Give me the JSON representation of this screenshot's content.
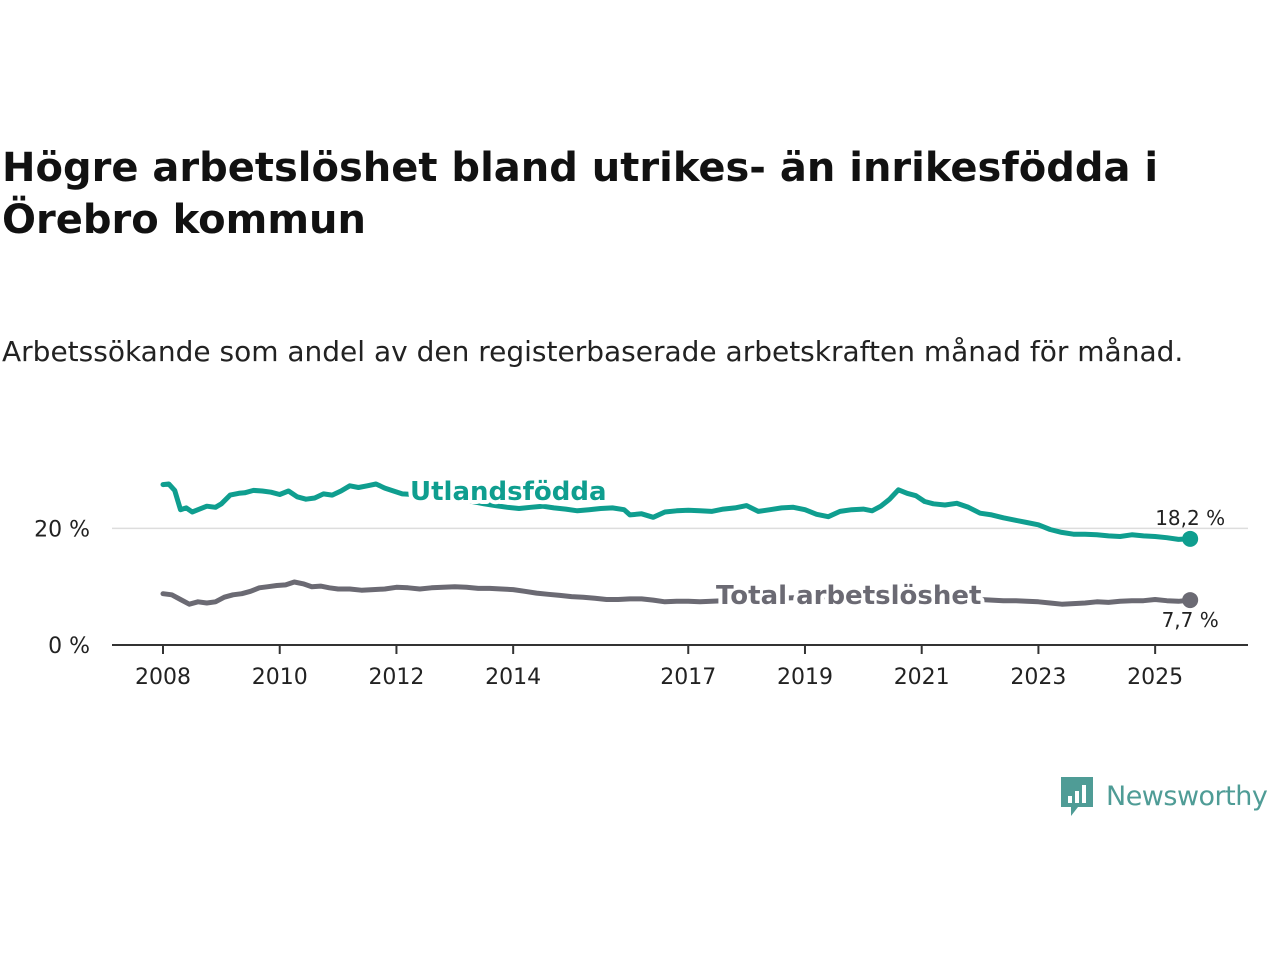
{
  "title": "Högre arbetslöshet bland utrikes- än inrikesfödda i Örebro kommun",
  "subtitle": "Arbetssökande som andel av den registerbaserade arbetskraften månad för månad.",
  "brand": {
    "name": "Newsworthy",
    "color": "#4f9c96"
  },
  "chart_data": {
    "type": "line",
    "title": "Högre arbetslöshet bland utrikes- än inrikesfödda i Örebro kommun",
    "xlabel": "",
    "ylabel": "",
    "xlim": [
      2008.0,
      2025.7
    ],
    "ylim": [
      0,
      30
    ],
    "grid": true,
    "x_ticks": [
      {
        "value": 2008,
        "label": "2008"
      },
      {
        "value": 2010,
        "label": "2010"
      },
      {
        "value": 2012,
        "label": "2012"
      },
      {
        "value": 2014,
        "label": "2014"
      },
      {
        "value": 2017,
        "label": "2017"
      },
      {
        "value": 2019,
        "label": "2019"
      },
      {
        "value": 2021,
        "label": "2021"
      },
      {
        "value": 2023,
        "label": "2023"
      },
      {
        "value": 2025,
        "label": "2025"
      }
    ],
    "y_ticks": [
      {
        "value": 0,
        "label": "0 %"
      },
      {
        "value": 20,
        "label": "20 %"
      }
    ],
    "series": [
      {
        "name": "Utlandsfödda",
        "color": "#0f9e8f",
        "end_label": "18,2 %",
        "x": [
          2008.0,
          2008.1,
          2008.2,
          2008.3,
          2008.4,
          2008.5,
          2008.6,
          2008.75,
          2008.9,
          2009.0,
          2009.15,
          2009.3,
          2009.4,
          2009.55,
          2009.7,
          2009.85,
          2010.0,
          2010.15,
          2010.3,
          2010.45,
          2010.6,
          2010.75,
          2010.9,
          2011.05,
          2011.2,
          2011.35,
          2011.5,
          2011.65,
          2011.8,
          2011.95,
          2012.1,
          2012.3,
          2012.5,
          2012.7,
          2012.9,
          2013.1,
          2013.3,
          2013.5,
          2013.7,
          2013.9,
          2014.1,
          2014.3,
          2014.5,
          2014.7,
          2014.9,
          2015.1,
          2015.3,
          2015.5,
          2015.7,
          2015.9,
          2016.0,
          2016.2,
          2016.4,
          2016.6,
          2016.8,
          2017.0,
          2017.2,
          2017.4,
          2017.6,
          2017.8,
          2018.0,
          2018.2,
          2018.4,
          2018.6,
          2018.8,
          2019.0,
          2019.2,
          2019.4,
          2019.6,
          2019.8,
          2020.0,
          2020.15,
          2020.3,
          2020.45,
          2020.6,
          2020.75,
          2020.9,
          2021.05,
          2021.2,
          2021.4,
          2021.6,
          2021.8,
          2022.0,
          2022.2,
          2022.4,
          2022.6,
          2022.8,
          2023.0,
          2023.2,
          2023.4,
          2023.6,
          2023.8,
          2024.0,
          2024.2,
          2024.4,
          2024.6,
          2024.8,
          2025.0,
          2025.2,
          2025.4,
          2025.6
        ],
        "values": [
          27.5,
          27.6,
          26.5,
          23.2,
          23.5,
          22.8,
          23.2,
          23.8,
          23.6,
          24.2,
          25.7,
          26.0,
          26.1,
          26.5,
          26.4,
          26.2,
          25.8,
          26.4,
          25.4,
          25.0,
          25.2,
          25.9,
          25.7,
          26.4,
          27.3,
          27.0,
          27.3,
          27.6,
          26.9,
          26.4,
          25.9,
          25.8,
          25.6,
          25.4,
          25.3,
          25.0,
          24.6,
          24.2,
          23.9,
          23.6,
          23.4,
          23.6,
          23.8,
          23.5,
          23.3,
          23.0,
          23.2,
          23.4,
          23.5,
          23.2,
          22.3,
          22.5,
          21.9,
          22.8,
          23.0,
          23.1,
          23.0,
          22.9,
          23.3,
          23.5,
          23.9,
          22.9,
          23.2,
          23.5,
          23.6,
          23.2,
          22.4,
          22.0,
          22.9,
          23.2,
          23.3,
          23.0,
          23.8,
          25.0,
          26.6,
          26.0,
          25.6,
          24.6,
          24.2,
          24.0,
          24.3,
          23.6,
          22.6,
          22.3,
          21.8,
          21.4,
          21.0,
          20.6,
          19.8,
          19.3,
          19.0,
          19.0,
          18.9,
          18.7,
          18.6,
          18.9,
          18.7,
          18.6,
          18.4,
          18.1,
          18.2
        ]
      },
      {
        "name": "Total arbetslöshet",
        "color": "#6b6a73",
        "end_label": "7,7 %",
        "x": [
          2008.0,
          2008.15,
          2008.3,
          2008.45,
          2008.6,
          2008.75,
          2008.9,
          2009.05,
          2009.2,
          2009.35,
          2009.5,
          2009.65,
          2009.8,
          2009.95,
          2010.1,
          2010.25,
          2010.4,
          2010.55,
          2010.7,
          2010.85,
          2011.0,
          2011.2,
          2011.4,
          2011.6,
          2011.8,
          2012.0,
          2012.2,
          2012.4,
          2012.6,
          2012.8,
          2013.0,
          2013.2,
          2013.4,
          2013.6,
          2013.8,
          2014.0,
          2014.2,
          2014.4,
          2014.6,
          2014.8,
          2015.0,
          2015.2,
          2015.4,
          2015.6,
          2015.8,
          2016.0,
          2016.2,
          2016.4,
          2016.6,
          2016.8,
          2017.0,
          2017.2,
          2017.4,
          2017.6,
          2017.8,
          2018.0,
          2018.2,
          2018.4,
          2018.6,
          2018.8,
          2019.0,
          2019.2,
          2019.4,
          2019.6,
          2019.8,
          2020.0,
          2020.2,
          2020.4,
          2020.6,
          2020.8,
          2021.0,
          2021.2,
          2021.4,
          2021.6,
          2021.8,
          2022.0,
          2022.2,
          2022.4,
          2022.6,
          2022.8,
          2023.0,
          2023.2,
          2023.4,
          2023.6,
          2023.8,
          2024.0,
          2024.2,
          2024.4,
          2024.6,
          2024.8,
          2025.0,
          2025.2,
          2025.4,
          2025.6
        ],
        "values": [
          8.8,
          8.6,
          7.8,
          7.0,
          7.4,
          7.2,
          7.4,
          8.2,
          8.6,
          8.8,
          9.2,
          9.8,
          10.0,
          10.2,
          10.3,
          10.8,
          10.5,
          10.0,
          10.1,
          9.8,
          9.6,
          9.6,
          9.4,
          9.5,
          9.6,
          9.9,
          9.8,
          9.6,
          9.8,
          9.9,
          10.0,
          9.9,
          9.7,
          9.7,
          9.6,
          9.5,
          9.2,
          8.9,
          8.7,
          8.5,
          8.3,
          8.2,
          8.0,
          7.8,
          7.8,
          7.9,
          7.9,
          7.7,
          7.4,
          7.5,
          7.5,
          7.4,
          7.5,
          7.6,
          7.7,
          7.8,
          7.9,
          7.9,
          8.0,
          8.1,
          8.3,
          8.4,
          8.2,
          8.1,
          8.0,
          8.0,
          8.2,
          8.4,
          8.6,
          8.5,
          8.4,
          8.3,
          8.2,
          8.1,
          8.0,
          7.8,
          7.7,
          7.6,
          7.6,
          7.5,
          7.4,
          7.2,
          7.0,
          7.1,
          7.2,
          7.4,
          7.3,
          7.5,
          7.6,
          7.6,
          7.8,
          7.6,
          7.5,
          7.7
        ]
      }
    ]
  }
}
